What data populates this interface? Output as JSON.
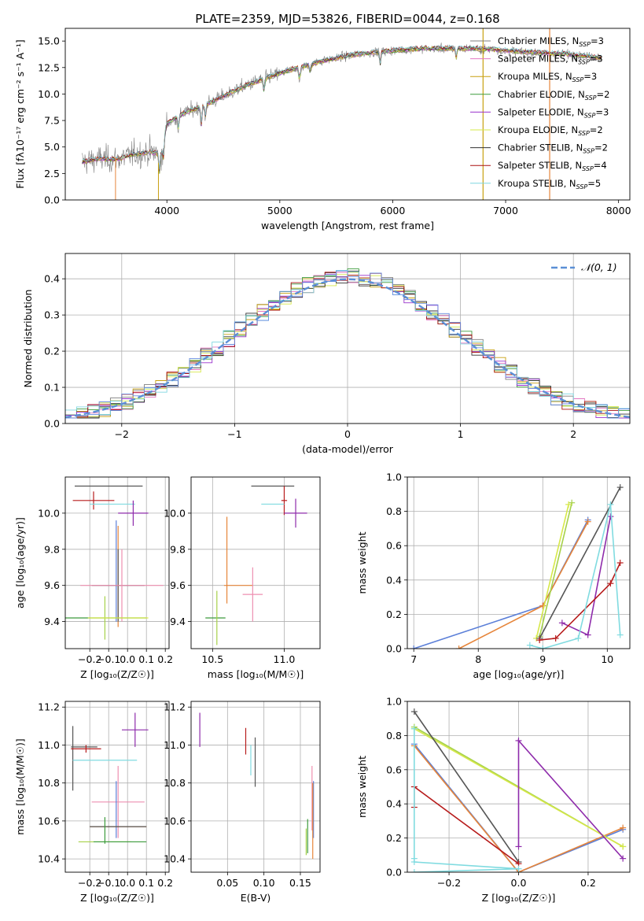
{
  "colors": {
    "Chabrier MILES": "#7f7f7f",
    "Salpeter MILES": "#e377c2",
    "Kroupa MILES": "#c8a010",
    "Chabrier ELODIE": "#3c9b3c",
    "Salpeter ELODIE": "#9932cc",
    "Kroupa ELODIE": "#d6e84a",
    "Chabrier STELIB": "#303030",
    "Salpeter STELIB": "#aa1111",
    "Kroupa STELIB": "#7fd6e0",
    "blue": "#5b7fd8",
    "orange": "#e6853a",
    "green": "#a6d14a",
    "grey": "#555555",
    "purple": "#8e2bab",
    "red": "#b71c1c",
    "cyan": "#80dbe0",
    "pink": "#ee8fb0"
  },
  "chart_data": [
    {
      "id": "spectrum",
      "type": "line",
      "title": "PLATE=2359, MJD=53826, FIBERID=0044, z=0.168",
      "xlabel": "wavelength [Angstrom, rest frame]",
      "ylabel": "Flux [fλ10⁻¹⁷ erg cm⁻² s⁻¹ A⁻¹]",
      "xlim": [
        3100,
        8100
      ],
      "ylim": [
        0,
        16.2
      ],
      "xticks": [
        4000,
        5000,
        6000,
        7000,
        8000
      ],
      "yticks": [
        0.0,
        2.5,
        5.0,
        7.5,
        10.0,
        12.5,
        15.0
      ],
      "xtick_labels": [
        "4000",
        "5000",
        "6000",
        "7000",
        "8000"
      ],
      "ytick_labels": [
        "0.0",
        "2.5",
        "5.0",
        "7.5",
        "10.0",
        "12.5",
        "15.0"
      ],
      "legend_loc": "right",
      "legend": [
        {
          "label": "Chabrier MILES, N",
          "sub": "SSP",
          "eq": "=3",
          "color": "#7f7f7f"
        },
        {
          "label": "Salpeter MILES, N",
          "sub": "SSP",
          "eq": "=3",
          "color": "#e377c2"
        },
        {
          "label": "Kroupa MILES, N",
          "sub": "SSP",
          "eq": "=3",
          "color": "#c8a010"
        },
        {
          "label": "Chabrier ELODIE, N",
          "sub": "SSP",
          "eq": "=2",
          "color": "#3c9b3c"
        },
        {
          "label": "Salpeter ELODIE, N",
          "sub": "SSP",
          "eq": "=3",
          "color": "#9932cc"
        },
        {
          "label": "Kroupa ELODIE, N",
          "sub": "SSP",
          "eq": "=2",
          "color": "#d6e84a"
        },
        {
          "label": "Chabrier STELIB, N",
          "sub": "SSP",
          "eq": "=2",
          "color": "#303030"
        },
        {
          "label": "Salpeter STELIB, N",
          "sub": "SSP",
          "eq": "=4",
          "color": "#aa1111"
        },
        {
          "label": "Kroupa STELIB, N",
          "sub": "SSP",
          "eq": "=5",
          "color": "#7fd6e0"
        }
      ],
      "continuum": [
        [
          3250,
          3.6
        ],
        [
          3400,
          3.9
        ],
        [
          3550,
          3.8
        ],
        [
          3700,
          4.3
        ],
        [
          3850,
          4.5
        ],
        [
          3950,
          4.4
        ],
        [
          4000,
          7.2
        ],
        [
          4150,
          8.2
        ],
        [
          4300,
          8.8
        ],
        [
          4500,
          9.8
        ],
        [
          4700,
          10.8
        ],
        [
          4900,
          11.6
        ],
        [
          5100,
          12.3
        ],
        [
          5300,
          12.9
        ],
        [
          5500,
          13.4
        ],
        [
          5700,
          13.8
        ],
        [
          5900,
          14.0
        ],
        [
          6100,
          14.2
        ],
        [
          6300,
          14.3
        ],
        [
          6500,
          14.3
        ],
        [
          6700,
          14.3
        ],
        [
          6900,
          14.2
        ],
        [
          7100,
          14.0
        ],
        [
          7300,
          13.9
        ],
        [
          7500,
          13.8
        ],
        [
          7700,
          13.6
        ],
        [
          7850,
          13.4
        ]
      ],
      "absorption": [
        [
          3933,
          2.0
        ],
        [
          3968,
          1.8
        ],
        [
          4102,
          1.2
        ],
        [
          4304,
          2.0
        ],
        [
          4340,
          1.2
        ],
        [
          4861,
          1.3
        ],
        [
          5175,
          1.6
        ],
        [
          5270,
          0.8
        ],
        [
          5890,
          1.3
        ],
        [
          6563,
          1.0
        ]
      ],
      "emission_spikes": [
        6800,
        7390
      ]
    },
    {
      "id": "residual-hist",
      "type": "line",
      "xlabel": "(data-model)/error",
      "ylabel": "Normed distribution",
      "xlim": [
        -2.5,
        2.5
      ],
      "ylim": [
        0,
        0.47
      ],
      "xticks": [
        -2,
        -1,
        0,
        1,
        2
      ],
      "yticks": [
        0.0,
        0.1,
        0.2,
        0.3,
        0.4
      ],
      "xtick_labels": [
        "−2",
        "−1",
        "0",
        "1",
        "2"
      ],
      "ytick_labels": [
        "0.0",
        "0.1",
        "0.2",
        "0.3",
        "0.4"
      ],
      "legend": [
        {
          "label": "𝒩(0, 1)",
          "color": "#5b8fd6",
          "style": "dashed"
        }
      ],
      "legend_loc": "upper right",
      "bin_width": 0.1,
      "series_colors": [
        "#7f7f7f",
        "#e377c2",
        "#c8a010",
        "#3c9b3c",
        "#9932cc",
        "#d6e84a",
        "#303030",
        "#aa1111",
        "#7fd6e0",
        "#6a8fe0"
      ]
    },
    {
      "id": "age-vs-Z",
      "type": "scatter",
      "xlabel": "Z [log₁₀(Z/Z☉)]",
      "ylabel": "age  [log₁₀(age/yr)]",
      "xlim": [
        -0.33,
        0.22
      ],
      "ylim": [
        9.25,
        10.2
      ],
      "xticks": [
        -0.2,
        -0.1,
        0.0,
        0.1,
        0.2
      ],
      "yticks": [
        9.4,
        9.6,
        9.8,
        10.0
      ],
      "xtick_labels": [
        "−0.2",
        "−0.1",
        "0.0",
        "0.1",
        "0.2"
      ],
      "ytick_labels": [
        "9.4",
        "9.6",
        "9.8",
        "10.0"
      ],
      "errorbars": [
        {
          "x": -0.1,
          "y": 10.15,
          "dx": 0.18,
          "dy": 0.0,
          "color": "#555555"
        },
        {
          "x": -0.18,
          "y": 10.07,
          "dx": 0.11,
          "dy": 0.05,
          "color": "#b71c1c"
        },
        {
          "x": -0.08,
          "y": 10.05,
          "dx": 0.12,
          "dy": 0.0,
          "color": "#80dbe0"
        },
        {
          "x": 0.03,
          "y": 10.0,
          "dx": 0.08,
          "dy": 0.07,
          "color": "#8e2bab"
        },
        {
          "x": -0.06,
          "y": 9.68,
          "dx": 0.0,
          "dy": 0.28,
          "color": "#5b7fd8"
        },
        {
          "x": -0.05,
          "y": 9.65,
          "dx": 0.0,
          "dy": 0.28,
          "color": "#e6853a"
        },
        {
          "x": -0.05,
          "y": 9.6,
          "dx": 0.14,
          "dy": 0.2,
          "color": "#555555"
        },
        {
          "x": -0.03,
          "y": 9.6,
          "dx": 0.22,
          "dy": 0.2,
          "color": "#ee8fb0"
        },
        {
          "x": -0.12,
          "y": 9.42,
          "dx": 0.22,
          "dy": 0.0,
          "color": "#3c9b3c"
        },
        {
          "x": -0.12,
          "y": 9.42,
          "dx": 0.0,
          "dy": 0.12,
          "color": "#a6d14a"
        },
        {
          "x": -0.05,
          "y": 9.42,
          "dx": 0.16,
          "dy": 0.0,
          "color": "#d6e84a"
        }
      ]
    },
    {
      "id": "age-vs-mass",
      "type": "scatter",
      "xlabel": "mass [log₁₀(M/M☉)]",
      "xlim": [
        10.35,
        11.25
      ],
      "ylim": [
        9.25,
        10.2
      ],
      "xticks": [
        10.5,
        11.0
      ],
      "yticks": [
        9.4,
        9.6,
        9.8,
        10.0
      ],
      "xtick_labels": [
        "10.5",
        "11.0"
      ],
      "ytick_labels": [
        "9.4",
        "9.6",
        "9.8",
        "10.0"
      ],
      "errorbars": [
        {
          "x": 10.92,
          "y": 10.15,
          "dx": 0.15,
          "dy": 0.0,
          "color": "#555555"
        },
        {
          "x": 11.0,
          "y": 10.07,
          "dx": 0.02,
          "dy": 0.08,
          "color": "#b71c1c"
        },
        {
          "x": 10.92,
          "y": 10.05,
          "dx": 0.08,
          "dy": 0.0,
          "color": "#80dbe0"
        },
        {
          "x": 11.08,
          "y": 10.0,
          "dx": 0.08,
          "dy": 0.08,
          "color": "#8e2bab"
        },
        {
          "x": 10.6,
          "y": 9.74,
          "dx": 0.0,
          "dy": 0.24,
          "color": "#e6853a"
        },
        {
          "x": 10.68,
          "y": 9.6,
          "dx": 0.1,
          "dy": 0.0,
          "color": "#e6853a"
        },
        {
          "x": 10.78,
          "y": 9.55,
          "dx": 0.07,
          "dy": 0.15,
          "color": "#ee8fb0"
        },
        {
          "x": 10.52,
          "y": 9.42,
          "dx": 0.07,
          "dy": 0.0,
          "color": "#3c9b3c"
        },
        {
          "x": 10.53,
          "y": 9.42,
          "dx": 0.0,
          "dy": 0.15,
          "color": "#a6d14a"
        }
      ]
    },
    {
      "id": "massweight-vs-age",
      "type": "line",
      "xlabel": "age  [log₁₀(age/yr)]",
      "ylabel": "mass weight",
      "xlim": [
        6.9,
        10.35
      ],
      "ylim": [
        0,
        1.0
      ],
      "xticks": [
        7,
        8,
        9,
        10
      ],
      "yticks": [
        0.0,
        0.2,
        0.4,
        0.6,
        0.8,
        1.0
      ],
      "xtick_labels": [
        "7",
        "8",
        "9",
        "10"
      ],
      "ytick_labels": [
        "0.0",
        "0.2",
        "0.4",
        "0.6",
        "0.8",
        "1.0"
      ],
      "series": [
        {
          "color": "#5b7fd8",
          "x": [
            7.0,
            9.0,
            9.7
          ],
          "y": [
            0.0,
            0.25,
            0.75
          ]
        },
        {
          "color": "#e6853a",
          "x": [
            7.7,
            9.0,
            9.7
          ],
          "y": [
            0.0,
            0.25,
            0.74
          ]
        },
        {
          "color": "#a6d14a",
          "x": [
            8.95,
            9.45
          ],
          "y": [
            0.07,
            0.85
          ]
        },
        {
          "color": "#d6e84a",
          "x": [
            8.9,
            9.4
          ],
          "y": [
            0.06,
            0.84
          ]
        },
        {
          "color": "#555555",
          "x": [
            8.95,
            10.2
          ],
          "y": [
            0.06,
            0.94
          ]
        },
        {
          "color": "#8e2bab",
          "x": [
            9.3,
            9.7,
            10.05
          ],
          "y": [
            0.15,
            0.08,
            0.77
          ]
        },
        {
          "color": "#b71c1c",
          "x": [
            8.95,
            9.2,
            10.05,
            10.2
          ],
          "y": [
            0.05,
            0.06,
            0.38,
            0.5
          ]
        },
        {
          "color": "#80dbe0",
          "x": [
            8.8,
            9.0,
            9.55,
            10.05,
            10.2
          ],
          "y": [
            0.02,
            0.0,
            0.06,
            0.84,
            0.08
          ]
        }
      ]
    },
    {
      "id": "mass-vs-Z",
      "type": "scatter",
      "xlabel": "Z [log₁₀(Z/Z☉)]",
      "ylabel": "mass [log₁₀(M/M☉)]",
      "xlim": [
        -0.33,
        0.22
      ],
      "ylim": [
        10.33,
        11.23
      ],
      "xticks": [
        -0.2,
        -0.1,
        0.0,
        0.1,
        0.2
      ],
      "yticks": [
        10.4,
        10.6,
        10.8,
        11.0,
        11.2
      ],
      "xtick_labels": [
        "−0.2",
        "−0.1",
        "0.0",
        "0.1",
        "0.2"
      ],
      "ytick_labels": [
        "10.4",
        "10.6",
        "10.8",
        "11.0",
        "11.2"
      ],
      "errorbars": [
        {
          "x": 0.04,
          "y": 11.08,
          "dx": 0.07,
          "dy": 0.09,
          "color": "#8e2bab"
        },
        {
          "x": -0.23,
          "y": 10.99,
          "dx": 0.07,
          "dy": 0.0,
          "color": "#555555"
        },
        {
          "x": -0.29,
          "y": 10.93,
          "dx": 0.0,
          "dy": 0.17,
          "color": "#555555"
        },
        {
          "x": -0.22,
          "y": 10.98,
          "dx": 0.08,
          "dy": 0.02,
          "color": "#b71c1c"
        },
        {
          "x": -0.12,
          "y": 10.92,
          "dx": 0.17,
          "dy": 0.0,
          "color": "#80dbe0"
        },
        {
          "x": -0.05,
          "y": 10.7,
          "dx": 0.14,
          "dy": 0.0,
          "color": "#ee8fb0"
        },
        {
          "x": -0.05,
          "y": 10.7,
          "dx": 0.0,
          "dy": 0.19,
          "color": "#ee8fb0"
        },
        {
          "x": -0.06,
          "y": 10.66,
          "dx": 0.0,
          "dy": 0.15,
          "color": "#5b7fd8"
        },
        {
          "x": -0.05,
          "y": 10.57,
          "dx": 0.15,
          "dy": 0.0,
          "color": "#e6853a"
        },
        {
          "x": -0.05,
          "y": 10.57,
          "dx": 0.15,
          "dy": 0.0,
          "color": "#555555"
        },
        {
          "x": -0.12,
          "y": 10.49,
          "dx": 0.14,
          "dy": 0.0,
          "color": "#a6d14a"
        },
        {
          "x": -0.12,
          "y": 10.55,
          "dx": 0.0,
          "dy": 0.07,
          "color": "#3c9b3c"
        },
        {
          "x": -0.04,
          "y": 10.49,
          "dx": 0.14,
          "dy": 0.0,
          "color": "#3c9b3c"
        }
      ]
    },
    {
      "id": "mass-vs-ebv",
      "type": "scatter",
      "xlabel": "E(B-V)",
      "xlim": [
        0.0,
        0.177
      ],
      "ylim": [
        10.33,
        11.23
      ],
      "xticks": [
        0.05,
        0.1,
        0.15
      ],
      "yticks": [
        10.4,
        10.6,
        10.8,
        11.0,
        11.2
      ],
      "xtick_labels": [
        "0.05",
        "0.10",
        "0.15"
      ],
      "ytick_labels": [
        "10.4",
        "10.6",
        "10.8",
        "11.0",
        "11.2"
      ],
      "errorbars": [
        {
          "x": 0.012,
          "y": 11.08,
          "dx": 0.0,
          "dy": 0.09,
          "color": "#8e2bab"
        },
        {
          "x": 0.075,
          "y": 11.02,
          "dx": 0.0,
          "dy": 0.07,
          "color": "#b71c1c"
        },
        {
          "x": 0.088,
          "y": 10.91,
          "dx": 0.0,
          "dy": 0.13,
          "color": "#555555"
        },
        {
          "x": 0.082,
          "y": 10.92,
          "dx": 0.0,
          "dy": 0.08,
          "color": "#80dbe0"
        },
        {
          "x": 0.166,
          "y": 10.72,
          "dx": 0.0,
          "dy": 0.17,
          "color": "#ee8fb0"
        },
        {
          "x": 0.168,
          "y": 10.66,
          "dx": 0.0,
          "dy": 0.15,
          "color": "#5b7fd8"
        },
        {
          "x": 0.167,
          "y": 10.6,
          "dx": 0.0,
          "dy": 0.2,
          "color": "#e6853a"
        },
        {
          "x": 0.158,
          "y": 10.49,
          "dx": 0.0,
          "dy": 0.07,
          "color": "#a6d14a"
        },
        {
          "x": 0.16,
          "y": 10.52,
          "dx": 0.0,
          "dy": 0.09,
          "color": "#3c9b3c"
        }
      ]
    },
    {
      "id": "massweight-vs-Z",
      "type": "line",
      "xlabel": "Z [log₁₀(Z/Z☉)]",
      "ylabel": "mass weight",
      "xlim": [
        -0.32,
        0.32
      ],
      "ylim": [
        0,
        1.0
      ],
      "xticks": [
        -0.2,
        0.0,
        0.2
      ],
      "yticks": [
        0.0,
        0.2,
        0.4,
        0.6,
        0.8,
        1.0
      ],
      "xtick_labels": [
        "−0.2",
        "0.0",
        "0.2"
      ],
      "ytick_labels": [
        "0.0",
        "0.2",
        "0.4",
        "0.6",
        "0.8",
        "1.0"
      ],
      "series": [
        {
          "color": "#5b7fd8",
          "x": [
            -0.3,
            0.0,
            0.3
          ],
          "y": [
            0.75,
            0.0,
            0.25
          ]
        },
        {
          "color": "#e6853a",
          "x": [
            -0.3,
            0.0,
            0.3
          ],
          "y": [
            0.74,
            0.0,
            0.26
          ]
        },
        {
          "color": "#a6d14a",
          "x": [
            -0.3,
            0.3
          ],
          "y": [
            0.85,
            0.15
          ]
        },
        {
          "color": "#d6e84a",
          "x": [
            -0.3,
            0.3
          ],
          "y": [
            0.84,
            0.15
          ]
        },
        {
          "color": "#555555",
          "x": [
            -0.3,
            0.0
          ],
          "y": [
            0.94,
            0.06
          ]
        },
        {
          "color": "#8e2bab",
          "x": [
            0.0,
            0.0,
            0.3
          ],
          "y": [
            0.15,
            0.77,
            0.08
          ]
        },
        {
          "color": "#b71c1c",
          "x": [
            -0.3,
            -0.3,
            0.0
          ],
          "y": [
            0.38,
            0.5,
            0.05
          ]
        },
        {
          "color": "#80dbe0",
          "x": [
            -0.3,
            -0.3,
            -0.3,
            0.0,
            -0.3
          ],
          "y": [
            0.84,
            0.08,
            0.06,
            0.02,
            0.0
          ]
        }
      ]
    }
  ]
}
